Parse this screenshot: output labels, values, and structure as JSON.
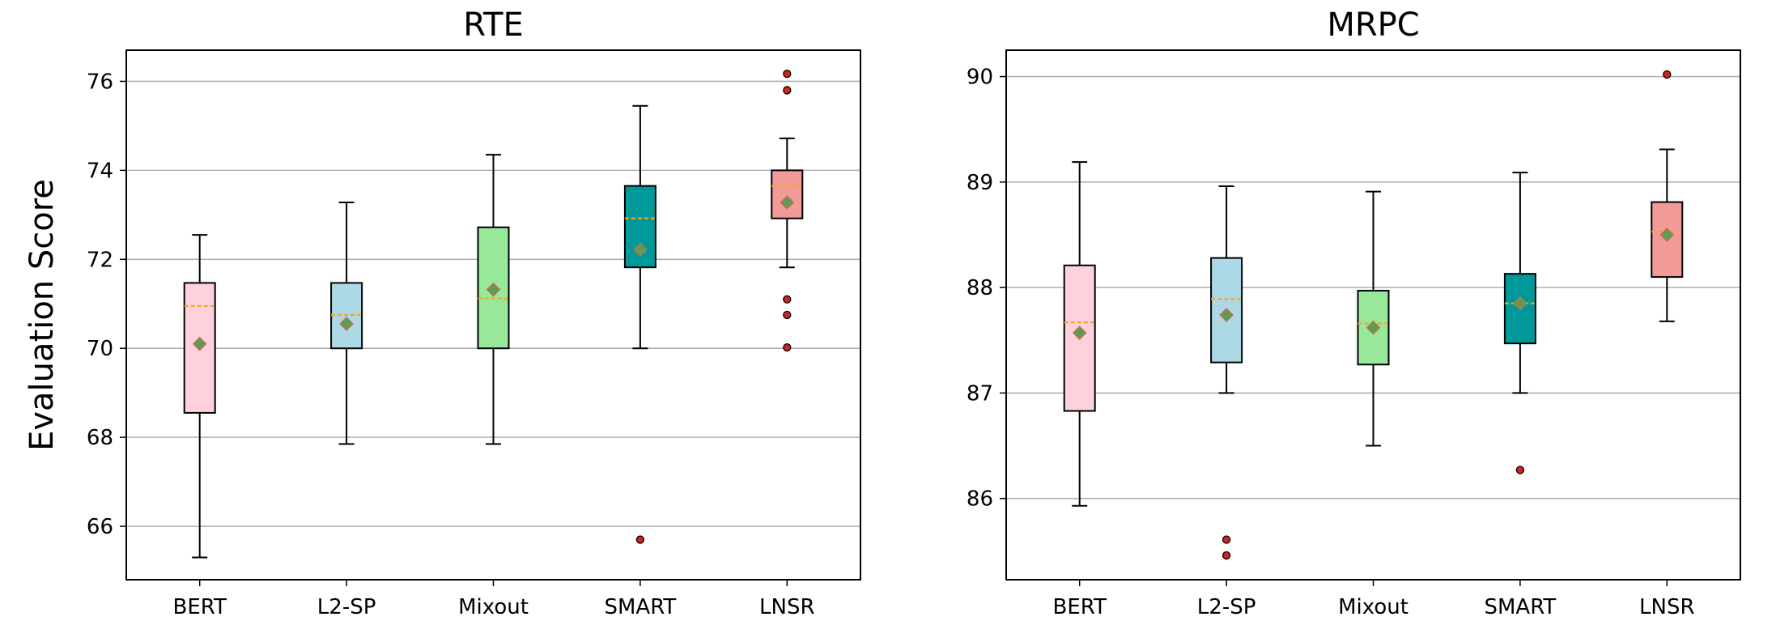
{
  "chart_data": [
    {
      "type": "box",
      "title": "RTE",
      "ylabel": "Evaluation Score",
      "categories": [
        "BERT",
        "L2-SP",
        "Mixout",
        "SMART",
        "LNSR"
      ],
      "ylim": [
        64.8,
        76.7
      ],
      "yticks": [
        "66",
        "68",
        "70",
        "72",
        "74",
        "76"
      ],
      "grid": "horizontal",
      "boxes": [
        {
          "name": "BERT",
          "whisker_low": 65.3,
          "q1": 68.55,
          "median": 70.95,
          "q3": 71.47,
          "whisker_high": 72.55,
          "mean": 70.1,
          "fliers": []
        },
        {
          "name": "L2-SP",
          "whisker_low": 67.85,
          "q1": 70.0,
          "median": 70.75,
          "q3": 71.47,
          "whisker_high": 73.28,
          "mean": 70.55,
          "fliers": []
        },
        {
          "name": "Mixout",
          "whisker_low": 67.85,
          "q1": 70.0,
          "median": 71.12,
          "q3": 72.72,
          "whisker_high": 74.35,
          "mean": 71.32,
          "fliers": []
        },
        {
          "name": "SMART",
          "whisker_low": 70.0,
          "q1": 71.82,
          "median": 72.92,
          "q3": 73.65,
          "whisker_high": 75.45,
          "mean": 72.22,
          "fliers": [
            65.7
          ]
        },
        {
          "name": "LNSR",
          "whisker_low": 71.82,
          "q1": 72.92,
          "median": 73.65,
          "q3": 74.0,
          "whisker_high": 74.72,
          "mean": 73.28,
          "fliers": [
            76.17,
            75.8,
            71.1,
            70.75,
            70.02
          ]
        }
      ],
      "colors": [
        "#ffd1dc",
        "#add8e6",
        "#98e89a",
        "#009999",
        "#f29a98"
      ]
    },
    {
      "type": "box",
      "title": "MRPC",
      "ylabel": "",
      "categories": [
        "BERT",
        "L2-SP",
        "Mixout",
        "SMART",
        "LNSR"
      ],
      "ylim": [
        85.23,
        90.25
      ],
      "yticks": [
        "86",
        "87",
        "88",
        "89",
        "90"
      ],
      "grid": "horizontal",
      "boxes": [
        {
          "name": "BERT",
          "whisker_low": 85.93,
          "q1": 86.83,
          "median": 87.67,
          "q3": 88.21,
          "whisker_high": 89.19,
          "mean": 87.57,
          "fliers": []
        },
        {
          "name": "L2-SP",
          "whisker_low": 87.0,
          "q1": 87.29,
          "median": 87.89,
          "q3": 88.28,
          "whisker_high": 88.96,
          "mean": 87.74,
          "fliers": [
            85.61,
            85.46
          ]
        },
        {
          "name": "Mixout",
          "whisker_low": 86.5,
          "q1": 87.27,
          "median": 87.66,
          "q3": 87.97,
          "whisker_high": 88.91,
          "mean": 87.62,
          "fliers": []
        },
        {
          "name": "SMART",
          "whisker_low": 87.0,
          "q1": 87.47,
          "median": 87.85,
          "q3": 88.13,
          "whisker_high": 89.09,
          "mean": 87.85,
          "fliers": [
            86.27
          ]
        },
        {
          "name": "LNSR",
          "whisker_low": 87.68,
          "q1": 88.1,
          "median": 88.53,
          "q3": 88.81,
          "whisker_high": 89.31,
          "mean": 88.5,
          "fliers": [
            90.02
          ]
        }
      ],
      "colors": [
        "#ffd1dc",
        "#add8e6",
        "#98e89a",
        "#009999",
        "#f29a98"
      ]
    }
  ],
  "style": {
    "median_color": "#f5a623",
    "mean_marker_color": "#5f9b55",
    "mean_marker_edge": "#d06a4a",
    "flier_color": "#d92020",
    "grid_color": "#b0b0b0"
  }
}
